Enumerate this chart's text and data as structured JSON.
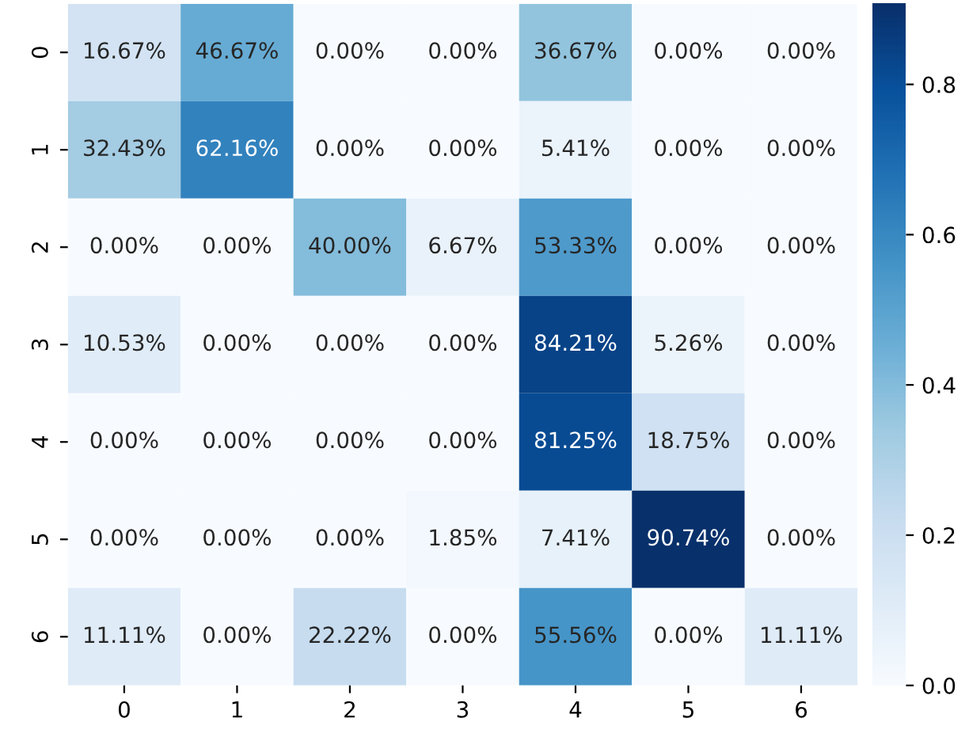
{
  "chart_data": {
    "type": "heatmap",
    "categories": [
      "0",
      "1",
      "2",
      "3",
      "4",
      "5",
      "6"
    ],
    "y_categories": [
      "0",
      "1",
      "2",
      "3",
      "4",
      "5",
      "6"
    ],
    "cells": [
      [
        0.1667,
        0.4667,
        0.0,
        0.0,
        0.3667,
        0.0,
        0.0
      ],
      [
        0.3243,
        0.6216,
        0.0,
        0.0,
        0.0541,
        0.0,
        0.0
      ],
      [
        0.0,
        0.0,
        0.4,
        0.0667,
        0.5333,
        0.0,
        0.0
      ],
      [
        0.1053,
        0.0,
        0.0,
        0.0,
        0.8421,
        0.0526,
        0.0
      ],
      [
        0.0,
        0.0,
        0.0,
        0.0,
        0.8125,
        0.1875,
        0.0
      ],
      [
        0.0,
        0.0,
        0.0,
        0.0185,
        0.0741,
        0.9074,
        0.0
      ],
      [
        0.1111,
        0.0,
        0.2222,
        0.0,
        0.5556,
        0.0,
        0.1111
      ]
    ],
    "cell_labels": [
      [
        "16.67%",
        "46.67%",
        "0.00%",
        "0.00%",
        "36.67%",
        "0.00%",
        "0.00%"
      ],
      [
        "32.43%",
        "62.16%",
        "0.00%",
        "0.00%",
        "5.41%",
        "0.00%",
        "0.00%"
      ],
      [
        "0.00%",
        "0.00%",
        "40.00%",
        "6.67%",
        "53.33%",
        "0.00%",
        "0.00%"
      ],
      [
        "10.53%",
        "0.00%",
        "0.00%",
        "0.00%",
        "84.21%",
        "5.26%",
        "0.00%"
      ],
      [
        "0.00%",
        "0.00%",
        "0.00%",
        "0.00%",
        "81.25%",
        "18.75%",
        "0.00%"
      ],
      [
        "0.00%",
        "0.00%",
        "0.00%",
        "1.85%",
        "7.41%",
        "90.74%",
        "0.00%"
      ],
      [
        "11.11%",
        "0.00%",
        "22.22%",
        "0.00%",
        "55.56%",
        "0.00%",
        "11.11%"
      ]
    ],
    "clim": [
      0,
      0.9074
    ],
    "cticks": [
      {
        "value": 0,
        "label": "0.0"
      },
      {
        "value": 0.2,
        "label": "0.2"
      },
      {
        "value": 0.4,
        "label": "0.4"
      },
      {
        "value": 0.6,
        "label": "0.6"
      },
      {
        "value": 0.8,
        "label": "0.8"
      }
    ]
  }
}
